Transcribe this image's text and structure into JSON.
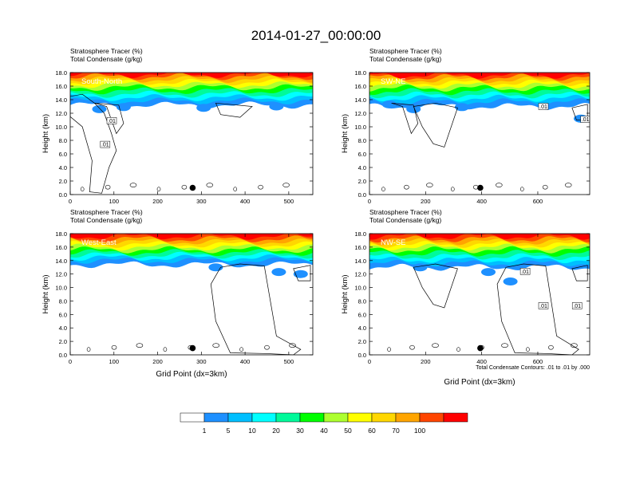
{
  "title": "2014-01-27_00:00:00",
  "footnote": "Total Condensate Contours: .01 to .01 by .000",
  "colorbar": {
    "labels": [
      "1",
      "5",
      "10",
      "20",
      "30",
      "40",
      "50",
      "60",
      "70",
      "100"
    ],
    "colors": [
      "#ffffff",
      "#1e90ff",
      "#00bfff",
      "#00ffff",
      "#00fa9a",
      "#00ff00",
      "#adff2f",
      "#ffff00",
      "#ffd700",
      "#ffa500",
      "#ff4500",
      "#ff0000"
    ]
  },
  "chart_data": [
    {
      "type": "heatmap",
      "title_lines": [
        "Stratosphere Tracer   (%)",
        "Total Condensate   (g/kg)"
      ],
      "label": "South-North",
      "ylabel": "Height (km)",
      "xlabel": "",
      "xlim": [
        0,
        555
      ],
      "ylim": [
        0,
        18
      ],
      "xticks": [
        0,
        100,
        200,
        300,
        400,
        500
      ],
      "yticks": [
        "0.0",
        "2.0",
        "4.0",
        "6.0",
        "8.0",
        "10.0",
        "12.0",
        "14.0",
        "16.0",
        "18.0"
      ],
      "marker_x": 280,
      "contour_labels": [
        {
          "text": ".01",
          "x": 95,
          "y": 10.9
        },
        {
          "text": ".01",
          "x": 80,
          "y": 7.4
        }
      ]
    },
    {
      "type": "heatmap",
      "title_lines": [
        "Stratosphere Tracer   (%)",
        "Total Condensate   (g/kg)"
      ],
      "label": "SW-NE",
      "ylabel": "Height (km)",
      "xlabel": "",
      "xlim": [
        0,
        785
      ],
      "ylim": [
        0,
        18
      ],
      "xticks": [
        0,
        200,
        400,
        600
      ],
      "yticks": [
        "0.0",
        "2.0",
        "4.0",
        "6.0",
        "8.0",
        "10.0",
        "12.0",
        "14.0",
        "16.0",
        "18.0"
      ],
      "marker_x": 395,
      "contour_labels": [
        {
          "text": ".01",
          "x": 620,
          "y": 13.0
        },
        {
          "text": ".01",
          "x": 770,
          "y": 11.1
        }
      ]
    },
    {
      "type": "heatmap",
      "title_lines": [
        "Stratosphere Tracer   (%)",
        "Total Condensate   (g/kg)"
      ],
      "label": "West-East",
      "ylabel": "Height (km)",
      "xlabel": "Grid Point (dx=3km)",
      "xlim": [
        0,
        555
      ],
      "ylim": [
        0,
        18
      ],
      "xticks": [
        0,
        100,
        200,
        300,
        400,
        500
      ],
      "yticks": [
        "0.0",
        "2.0",
        "4.0",
        "6.0",
        "8.0",
        "10.0",
        "12.0",
        "14.0",
        "16.0",
        "18.0"
      ],
      "marker_x": 280,
      "contour_labels": []
    },
    {
      "type": "heatmap",
      "title_lines": [
        "Stratosphere Tracer   (%)",
        "Total Condensate   (g/kg)"
      ],
      "label": "NW-SE",
      "ylabel": "Height (km)",
      "xlabel": "Grid Point (dx=3km)",
      "xlim": [
        0,
        785
      ],
      "ylim": [
        0,
        18
      ],
      "xticks": [
        0,
        200,
        400,
        600
      ],
      "yticks": [
        "0.0",
        "2.0",
        "4.0",
        "6.0",
        "8.0",
        "10.0",
        "12.0",
        "14.0",
        "16.0",
        "18.0"
      ],
      "marker_x": 395,
      "contour_labels": [
        {
          "text": ".01",
          "x": 555,
          "y": 12.4
        },
        {
          "text": ".01",
          "x": 620,
          "y": 7.3
        },
        {
          "text": ".01",
          "x": 740,
          "y": 7.3
        }
      ]
    }
  ]
}
